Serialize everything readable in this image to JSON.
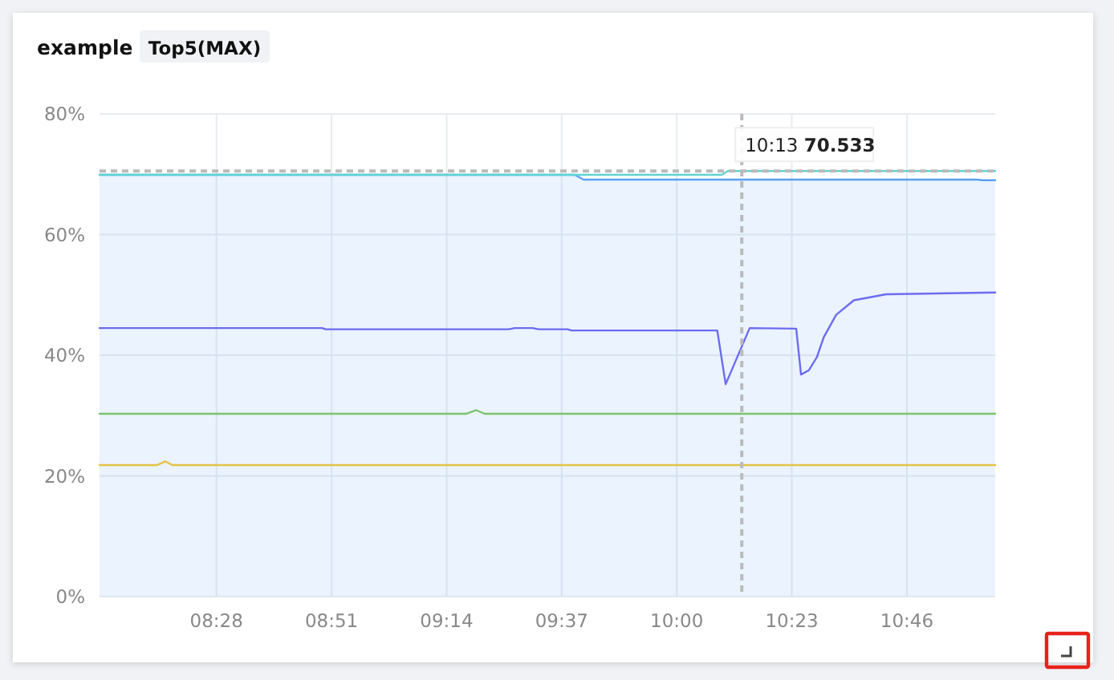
{
  "chart_data": {
    "type": "line",
    "title": "example",
    "subtitle": "Top5(MAX)",
    "xlim": [
      8.077,
      11.061
    ],
    "xticks": [
      {
        "value": 8.4667,
        "label": "08:28"
      },
      {
        "value": 8.85,
        "label": "08:51"
      },
      {
        "value": 9.2333,
        "label": "09:14"
      },
      {
        "value": 9.6167,
        "label": "09:37"
      },
      {
        "value": 10,
        "label": "10:00"
      },
      {
        "value": 10.3833,
        "label": "10:23"
      },
      {
        "value": 10.7667,
        "label": "10:46"
      }
    ],
    "ylim": [
      0,
      80
    ],
    "yticks": [
      {
        "value": 0,
        "label": "0%"
      },
      {
        "value": 20,
        "label": "20%"
      },
      {
        "value": 40,
        "label": "40%"
      },
      {
        "value": 60,
        "label": "60%"
      },
      {
        "value": 80,
        "label": "80%"
      }
    ],
    "grid": true,
    "marker": "none",
    "line_style": "solid",
    "series": [
      {
        "type": "area",
        "color": "#5b9ff5",
        "x": [
          8.077,
          9.66,
          9.69,
          11.0,
          11.02,
          11.061
        ],
        "values": [
          69.9,
          69.9,
          69.1,
          69.1,
          69.0,
          69.0
        ]
      },
      {
        "color": "#5fd3cf",
        "x": [
          8.077,
          10.15,
          10.17,
          11.061
        ],
        "values": [
          69.9,
          69.9,
          70.533,
          70.533
        ]
      },
      {
        "color": "#6c6cf0",
        "x": [
          8.077,
          8.819,
          8.83,
          9.44,
          9.46,
          9.52,
          9.54,
          9.636,
          9.65,
          10.135,
          10.163,
          10.243,
          10.398,
          10.414,
          10.44,
          10.467,
          10.49,
          10.531,
          10.59,
          10.697,
          11.061
        ],
        "values": [
          44.5,
          44.5,
          44.3,
          44.3,
          44.5,
          44.5,
          44.3,
          44.3,
          44.1,
          44.1,
          35.2,
          44.5,
          44.4,
          36.8,
          37.5,
          39.7,
          43,
          46.7,
          49.1,
          50.1,
          50.4
        ]
      },
      {
        "color": "#7cc46c",
        "x": [
          8.077,
          9.3,
          9.332,
          9.36,
          11.061
        ],
        "values": [
          30.3,
          30.3,
          30.9,
          30.3,
          30.3
        ]
      },
      {
        "color": "#e3c444",
        "x": [
          8.077,
          8.27,
          8.296,
          8.32,
          11.061
        ],
        "values": [
          21.8,
          21.8,
          22.4,
          21.8,
          21.8
        ]
      }
    ],
    "ref_lines": [
      {
        "axis": "x",
        "value": 10.2167,
        "color": "#bbbbbb",
        "line_style": "dashed"
      },
      {
        "axis": "y",
        "value": 70.533,
        "color": "#bbbbbb",
        "line_style": "dashed"
      }
    ],
    "annotations": [
      {
        "text": "10:13 70.533",
        "x": 10.2167,
        "y": 70.533
      }
    ]
  }
}
